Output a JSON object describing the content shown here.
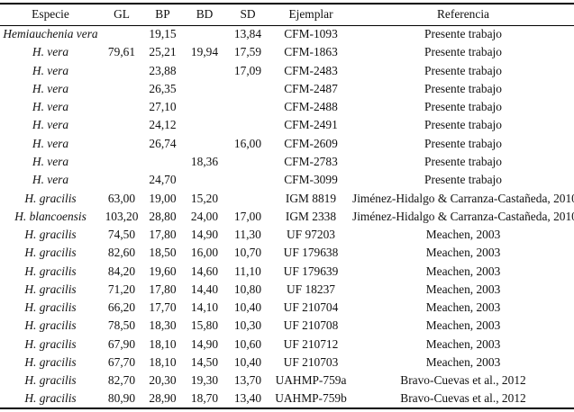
{
  "table": {
    "columns": [
      "Especie",
      "GL",
      "BP",
      "BD",
      "SD",
      "Ejemplar",
      "Referencia"
    ],
    "rows": [
      {
        "especie": "Hemiauchenia vera",
        "gl": "",
        "bp": "19,15",
        "bd": "",
        "sd": "13,84",
        "ejemplar": "CFM-1093",
        "referencia": "Presente trabajo"
      },
      {
        "especie": "H. vera",
        "gl": "79,61",
        "bp": "25,21",
        "bd": "19,94",
        "sd": "17,59",
        "ejemplar": "CFM-1863",
        "referencia": "Presente trabajo"
      },
      {
        "especie": "H. vera",
        "gl": "",
        "bp": "23,88",
        "bd": "",
        "sd": "17,09",
        "ejemplar": "CFM-2483",
        "referencia": "Presente trabajo"
      },
      {
        "especie": "H. vera",
        "gl": "",
        "bp": "26,35",
        "bd": "",
        "sd": "",
        "ejemplar": "CFM-2487",
        "referencia": "Presente trabajo"
      },
      {
        "especie": "H. vera",
        "gl": "",
        "bp": "27,10",
        "bd": "",
        "sd": "",
        "ejemplar": "CFM-2488",
        "referencia": "Presente trabajo"
      },
      {
        "especie": "H. vera",
        "gl": "",
        "bp": "24,12",
        "bd": "",
        "sd": "",
        "ejemplar": "CFM-2491",
        "referencia": "Presente trabajo"
      },
      {
        "especie": "H. vera",
        "gl": "",
        "bp": "26,74",
        "bd": "",
        "sd": "16,00",
        "ejemplar": "CFM-2609",
        "referencia": "Presente trabajo"
      },
      {
        "especie": "H. vera",
        "gl": "",
        "bp": "",
        "bd": "18,36",
        "sd": "",
        "ejemplar": "CFM-2783",
        "referencia": "Presente trabajo"
      },
      {
        "especie": "H. vera",
        "gl": "",
        "bp": "24,70",
        "bd": "",
        "sd": "",
        "ejemplar": "CFM-3099",
        "referencia": "Presente trabajo"
      },
      {
        "especie": "H. gracilis",
        "gl": "63,00",
        "bp": "19,00",
        "bd": "15,20",
        "sd": "",
        "ejemplar": "IGM 8819",
        "referencia": "Jiménez-Hidalgo & Carranza-Castañeda, 2010"
      },
      {
        "especie": "H. blancoensis",
        "gl": "103,20",
        "bp": "28,80",
        "bd": "24,00",
        "sd": "17,00",
        "ejemplar": "IGM 2338",
        "referencia": "Jiménez-Hidalgo & Carranza-Castañeda, 2010"
      },
      {
        "especie": "H. gracilis",
        "gl": "74,50",
        "bp": "17,80",
        "bd": "14,90",
        "sd": "11,30",
        "ejemplar": "UF 97203",
        "referencia": "Meachen, 2003"
      },
      {
        "especie": "H. gracilis",
        "gl": "82,60",
        "bp": "18,50",
        "bd": "16,00",
        "sd": "10,70",
        "ejemplar": "UF 179638",
        "referencia": "Meachen, 2003"
      },
      {
        "especie": "H. gracilis",
        "gl": "84,20",
        "bp": "19,60",
        "bd": "14,60",
        "sd": "11,10",
        "ejemplar": "UF 179639",
        "referencia": "Meachen, 2003"
      },
      {
        "especie": "H. gracilis",
        "gl": "71,20",
        "bp": "17,80",
        "bd": "14,40",
        "sd": "10,80",
        "ejemplar": "UF 18237",
        "referencia": "Meachen, 2003"
      },
      {
        "especie": "H. gracilis",
        "gl": "66,20",
        "bp": "17,70",
        "bd": "14,10",
        "sd": "10,40",
        "ejemplar": "UF 210704",
        "referencia": "Meachen, 2003"
      },
      {
        "especie": "H. gracilis",
        "gl": "78,50",
        "bp": "18,30",
        "bd": "15,80",
        "sd": "10,30",
        "ejemplar": "UF 210708",
        "referencia": "Meachen, 2003"
      },
      {
        "especie": "H. gracilis",
        "gl": "67,90",
        "bp": "18,10",
        "bd": "14,90",
        "sd": "10,60",
        "ejemplar": "UF 210712",
        "referencia": "Meachen, 2003"
      },
      {
        "especie": "H. gracilis",
        "gl": "67,70",
        "bp": "18,10",
        "bd": "14,50",
        "sd": "10,40",
        "ejemplar": "UF 210703",
        "referencia": "Meachen, 2003"
      },
      {
        "especie": "H. gracilis",
        "gl": "82,70",
        "bp": "20,30",
        "bd": "19,30",
        "sd": "13,70",
        "ejemplar": "UAHMP-759a",
        "referencia": "Bravo-Cuevas et al., 2012"
      },
      {
        "especie": "H. gracilis",
        "gl": "80,90",
        "bp": "28,90",
        "bd": "18,70",
        "sd": "13,40",
        "ejemplar": "UAHMP-759b",
        "referencia": "Bravo-Cuevas et al., 2012"
      }
    ]
  }
}
